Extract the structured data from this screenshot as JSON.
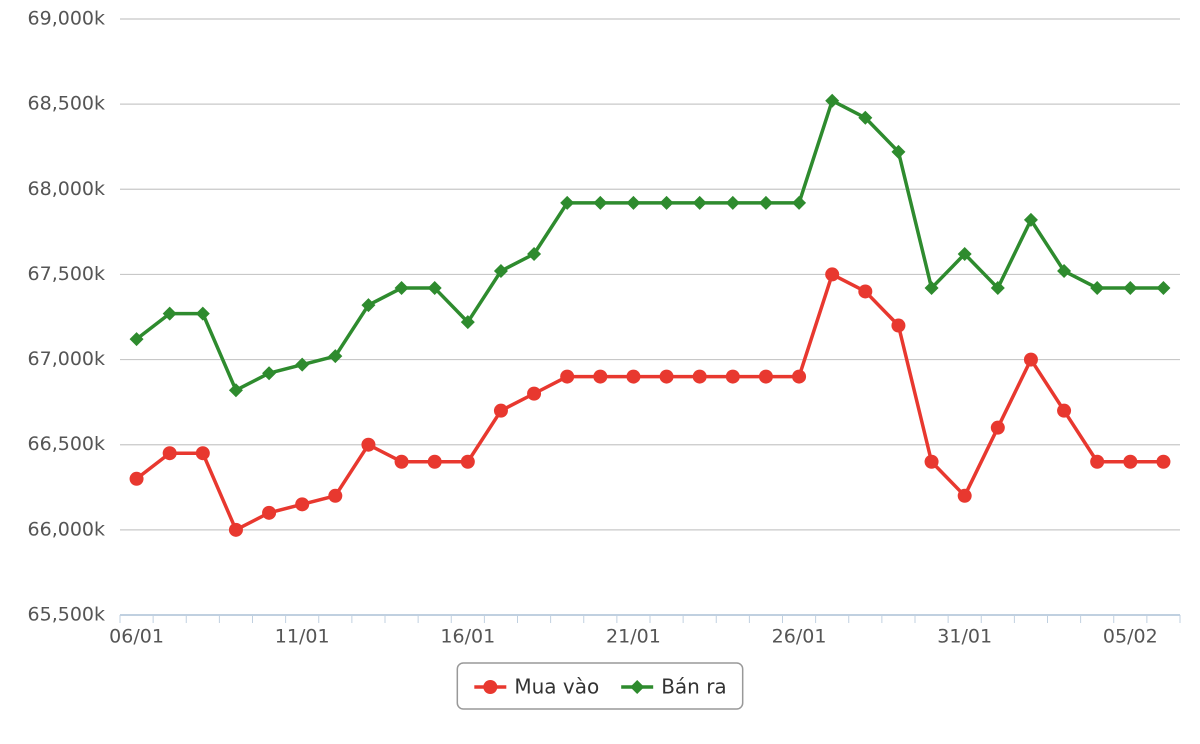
{
  "chart_data": {
    "type": "line",
    "categories": [
      "06/01",
      null,
      null,
      null,
      null,
      "11/01",
      null,
      null,
      null,
      null,
      "16/01",
      null,
      null,
      null,
      null,
      "21/01",
      null,
      null,
      null,
      null,
      "26/01",
      null,
      null,
      null,
      null,
      "31/01",
      null,
      null,
      null,
      null,
      "05/02",
      null
    ],
    "series": [
      {
        "name": "Mua vào",
        "color": "#e8382f",
        "marker": "circle",
        "values": [
          66300,
          66450,
          66450,
          66000,
          66100,
          66150,
          66200,
          66500,
          66400,
          66400,
          66400,
          66700,
          66800,
          66900,
          66900,
          66900,
          66900,
          66900,
          66900,
          66900,
          66900,
          67500,
          67400,
          67200,
          66400,
          66200,
          66600,
          67000,
          66700,
          66400,
          66400,
          66400
        ]
      },
      {
        "name": "Bán ra",
        "color": "#2e8b2e",
        "marker": "diamond",
        "values": [
          67120,
          67270,
          67270,
          66820,
          66920,
          66970,
          67020,
          67320,
          67420,
          67420,
          67220,
          67520,
          67620,
          67920,
          67920,
          67920,
          67920,
          67920,
          67920,
          67920,
          67920,
          68520,
          68420,
          68220,
          67420,
          67620,
          67420,
          67820,
          67520,
          67420,
          67420,
          67420
        ]
      }
    ],
    "ylim": [
      65500,
      69000
    ],
    "yticks": [
      {
        "value": 65500,
        "label": "65,500k"
      },
      {
        "value": 66000,
        "label": "66,000k"
      },
      {
        "value": 66500,
        "label": "66,500k"
      },
      {
        "value": 67000,
        "label": "67,000k"
      },
      {
        "value": 67500,
        "label": "67,500k"
      },
      {
        "value": 68000,
        "label": "68,000k"
      },
      {
        "value": 68500,
        "label": "68,500k"
      },
      {
        "value": 69000,
        "label": "69,000k"
      }
    ],
    "grid": true,
    "legend": "bottom"
  }
}
